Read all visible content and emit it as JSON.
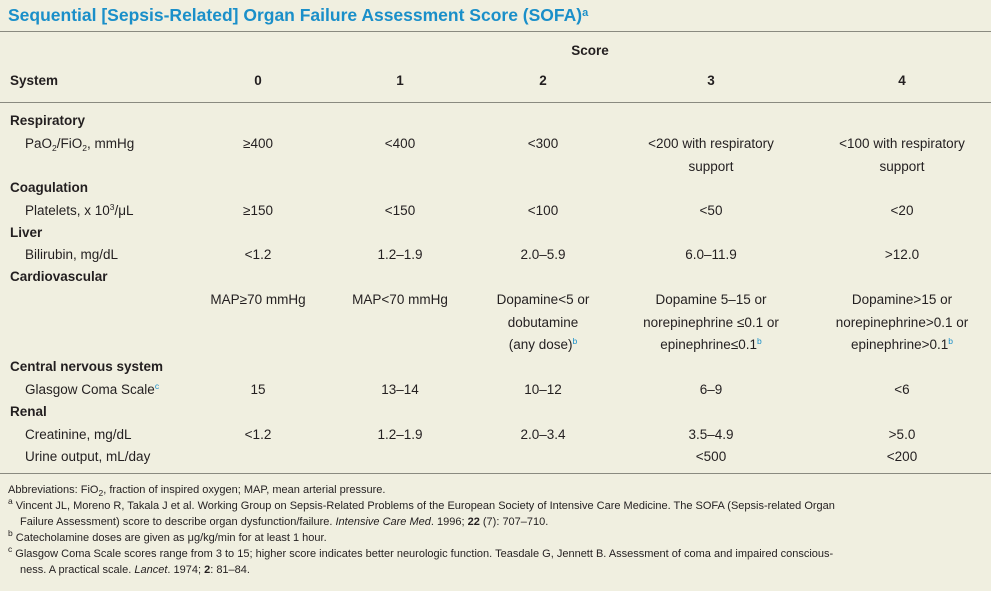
{
  "title": "Sequential [Sepsis-Related] Organ Failure Assessment Score (SOFA)",
  "title_sup": "a",
  "score_label": "Score",
  "header": {
    "system": "System",
    "s0": "0",
    "s1": "1",
    "s2": "2",
    "s3": "3",
    "s4": "4"
  },
  "rows": {
    "respiratory": {
      "system": "Respiratory",
      "param_a": "PaO",
      "param_sub1": "2",
      "param_b": "/FiO",
      "param_sub2": "2",
      "param_c": ", mmHg",
      "s0": "≥400",
      "s1": "<400",
      "s2": "<300",
      "s3_l1": "<200 with respiratory",
      "s3_l2": "support",
      "s4_l1": "<100 with respiratory",
      "s4_l2": "support"
    },
    "coagulation": {
      "system": "Coagulation",
      "param_a": "Platelets, x 10",
      "param_sup": "3",
      "param_b": "/μL",
      "s0": "≥150",
      "s1": "<150",
      "s2": "<100",
      "s3": "<50",
      "s4": "<20"
    },
    "liver": {
      "system": "Liver",
      "param": "Bilirubin, mg/dL",
      "s0": "<1.2",
      "s1": "1.2–1.9",
      "s2": "2.0–5.9",
      "s3": "6.0–11.9",
      "s4": ">12.0"
    },
    "cardiovascular": {
      "system": "Cardiovascular",
      "s0": "MAP≥70 mmHg",
      "s1": "MAP<70 mmHg",
      "s2_l1": "Dopamine<5 or",
      "s2_l2": "dobutamine",
      "s2_l3": "(any dose)",
      "s2_sup": "b",
      "s3_l1": "Dopamine 5–15 or",
      "s3_l2": "norepinephrine ≤0.1 or",
      "s3_l3": "epinephrine≤0.1",
      "s3_sup": "b",
      "s4_l1": "Dopamine>15 or",
      "s4_l2": "norepinephrine>0.1 or",
      "s4_l3": "epinephrine>0.1",
      "s4_sup": "b"
    },
    "cns": {
      "system": "Central nervous system",
      "param": "Glasgow Coma Scale",
      "param_sup": "c",
      "s0": "15",
      "s1": "13–14",
      "s2": "10–12",
      "s3": "6–9",
      "s4": "<6"
    },
    "renal": {
      "system": "Renal",
      "creat_param": "Creatinine, mg/dL",
      "creat_s0": "<1.2",
      "creat_s1": "1.2–1.9",
      "creat_s2": "2.0–3.4",
      "creat_s3": "3.5–4.9",
      "creat_s4": ">5.0",
      "urine_param": "Urine output, mL/day",
      "urine_s3": "<500",
      "urine_s4": "<200"
    }
  },
  "footnotes": {
    "abbrev_a": "Abbreviations: FiO",
    "abbrev_sub": "2",
    "abbrev_b": ", fraction of inspired oxygen; MAP, mean arterial pressure.",
    "a_mark": "a",
    "a_line1": " Vincent JL, Moreno R, Takala J et al. Working Group on Sepsis-Related Problems of the European Society of Intensive Care Medicine. The SOFA (Sepsis-related Organ",
    "a_line2_pre": "Failure Assessment) score to describe organ dysfunction/failure. ",
    "a_line2_journal": "Intensive Care Med",
    "a_line2_mid": ". 1996; ",
    "a_line2_vol": "22",
    "a_line2_post": " (7): 707–710.",
    "b_mark": "b",
    "b_line": " Catecholamine doses are given as μg/kg/min for at least 1 hour.",
    "c_mark": "c",
    "c_line1": " Glasgow Coma Scale scores range from 3 to 15; higher score indicates better neurologic function. Teasdale G, Jennett B. Assessment of coma and impaired conscious-",
    "c_line2_pre": "ness. A practical scale. ",
    "c_line2_journal": "Lancet",
    "c_line2_mid": ". 1974; ",
    "c_line2_vol": "2",
    "c_line2_post": ": 81–84."
  }
}
